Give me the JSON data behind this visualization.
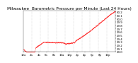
{
  "title": "Milwaukee  Barometric Pressure per Minute (Last 24 Hours)",
  "background_color": "#ffffff",
  "line_color": "#ff0000",
  "grid_color": "#aaaaaa",
  "title_fontsize": 4.2,
  "tick_fontsize": 2.8,
  "ylim": [
    29.0,
    30.25
  ],
  "yticks": [
    29.0,
    29.1,
    29.2,
    29.3,
    29.4,
    29.5,
    29.6,
    29.7,
    29.8,
    29.9,
    30.0,
    30.1,
    30.2
  ],
  "num_points": 1440,
  "num_vgrid_lines": 11,
  "seed": 17
}
